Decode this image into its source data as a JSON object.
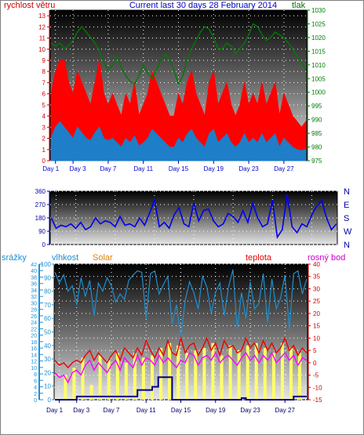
{
  "chart_data": [
    {
      "type": "line",
      "title": "Current last 30 days 28 February 2014",
      "left_axis_label": "rychlost větru",
      "right_axis_label": "tlak",
      "left_ticks": [
        0,
        1,
        2,
        3,
        4,
        5,
        6,
        7,
        8,
        9,
        10,
        11,
        12,
        13
      ],
      "right_ticks": [
        975,
        980,
        985,
        990,
        995,
        1000,
        1005,
        1010,
        1015,
        1020,
        1025,
        1030
      ],
      "ylim_left": [
        0,
        13.5
      ],
      "ylim_right": [
        975,
        1030
      ],
      "x_ticks": [
        "Day 1",
        "Day 3",
        "Day 7",
        "Day 11",
        "Day 15",
        "Day 19",
        "Day 23",
        "Day 27"
      ],
      "x_tick_days": [
        1,
        3,
        7,
        11,
        15,
        19,
        23,
        27
      ],
      "xlim": [
        0.4,
        29.6
      ],
      "grid": true,
      "colors": {
        "gust": "#ff0000",
        "wind": "#1e7ec8",
        "pressure": "#007a00",
        "title": "#0000cc"
      },
      "pressure": {
        "x": [
          0.5,
          1,
          1.5,
          2,
          2.5,
          3,
          3.5,
          4,
          4.5,
          5,
          5.5,
          6,
          6.5,
          7,
          7.5,
          8,
          8.5,
          9,
          9.5,
          10,
          10.5,
          11,
          11.5,
          12,
          12.5,
          13,
          13.5,
          14,
          14.5,
          15,
          15.5,
          16,
          16.5,
          17,
          17.5,
          18,
          18.5,
          19,
          19.5,
          20,
          20.5,
          21,
          21.5,
          22,
          22.5,
          23,
          23.5,
          24,
          24.5,
          25,
          25.5,
          26,
          26.5,
          27,
          27.5,
          28,
          28.5,
          29,
          29.5
        ],
        "y": [
          1018,
          1017,
          1018,
          1016,
          1017,
          1019,
          1022,
          1024,
          1022,
          1020,
          1018,
          1015,
          1011,
          1008,
          1010,
          1013,
          1009,
          1006,
          1004,
          1003,
          1006,
          1010,
          1007,
          1005,
          1008,
          1012,
          1014,
          1012,
          1008,
          1003,
          1006,
          1012,
          1016,
          1019,
          1022,
          1024,
          1023,
          1020,
          1016,
          1016,
          1018,
          1017,
          1014,
          1016,
          1018,
          1021,
          1025,
          1024,
          1021,
          1019,
          1020,
          1022,
          1021,
          1020,
          1018,
          1016,
          1013,
          1011,
          1008
        ]
      },
      "gust_peak": {
        "x": [
          0.5,
          1,
          1.5,
          2,
          2.5,
          3,
          3.5,
          4,
          4.5,
          5,
          5.5,
          6,
          6.5,
          7,
          7.5,
          8,
          8.5,
          9,
          9.5,
          10,
          10.5,
          11,
          11.5,
          12,
          12.5,
          13,
          13.5,
          14,
          14.5,
          15,
          15.5,
          16,
          16.5,
          17,
          17.5,
          18,
          18.5,
          19,
          19.5,
          20,
          20.5,
          21,
          21.5,
          22,
          22.5,
          23,
          23.5,
          24,
          24.5,
          25,
          25.5,
          26,
          26.5,
          27,
          27.5,
          28,
          28.5,
          29,
          29.5
        ],
        "y": [
          6,
          8,
          9,
          9,
          7,
          6,
          8,
          7,
          6,
          5,
          7,
          9,
          6,
          5,
          6,
          5,
          4,
          6,
          5,
          7,
          4,
          5,
          6,
          8,
          7,
          6,
          5,
          4,
          4,
          6,
          5,
          7,
          8,
          6,
          5,
          4,
          7,
          8,
          5,
          6,
          7,
          5,
          4,
          5,
          7,
          5,
          6,
          5,
          7,
          5,
          6,
          7,
          4,
          6,
          5,
          4,
          3.5,
          3,
          3.5
        ]
      },
      "wind_avg": {
        "x": [
          0.5,
          1,
          1.5,
          2,
          2.5,
          3,
          3.5,
          4,
          4.5,
          5,
          5.5,
          6,
          6.5,
          7,
          7.5,
          8,
          8.5,
          9,
          9.5,
          10,
          10.5,
          11,
          11.5,
          12,
          12.5,
          13,
          13.5,
          14,
          14.5,
          15,
          15.5,
          16,
          16.5,
          17,
          17.5,
          18,
          18.5,
          19,
          19.5,
          20,
          20.5,
          21,
          21.5,
          22,
          22.5,
          23,
          23.5,
          24,
          24.5,
          25,
          25.5,
          26,
          26.5,
          27,
          27.5,
          28,
          28.5,
          29,
          29.5
        ],
        "y": [
          2,
          3,
          3.5,
          3,
          2.5,
          2,
          3,
          2.5,
          2,
          1.8,
          2.5,
          3,
          2,
          1.8,
          2,
          1.6,
          1.2,
          2,
          1.6,
          2.2,
          1.3,
          1.6,
          2,
          2.8,
          2.4,
          2,
          1.6,
          1.2,
          1.2,
          2,
          1.6,
          2.4,
          2.8,
          2,
          1.6,
          1.2,
          2.4,
          2.8,
          1.6,
          2,
          2.4,
          1.6,
          1.2,
          1.6,
          2.4,
          1.6,
          2,
          1.6,
          2.4,
          1.6,
          2,
          2.4,
          1.2,
          2,
          1.6,
          1.2,
          1,
          0.9,
          1
        ]
      }
    },
    {
      "type": "line",
      "left_ticks": [
        0,
        90,
        180,
        270,
        360
      ],
      "ylim": [
        0,
        360
      ],
      "right_labels": [
        "N",
        "W",
        "S",
        "E",
        "N"
      ],
      "xlim": [
        0.4,
        29.6
      ],
      "colors": {
        "direction": "#0000ee"
      },
      "direction": {
        "x": [
          0.5,
          1,
          1.5,
          2,
          2.5,
          3,
          3.5,
          4,
          4.5,
          5,
          5.5,
          6,
          6.5,
          7,
          7.5,
          8,
          8.5,
          9,
          9.5,
          10,
          10.5,
          11,
          11.5,
          12,
          12.5,
          13,
          13.5,
          14,
          14.5,
          15,
          15.5,
          16,
          16.5,
          17,
          17.5,
          18,
          18.5,
          19,
          19.5,
          20,
          20.5,
          21,
          21.5,
          22,
          22.5,
          23,
          23.5,
          24,
          24.5,
          25,
          25.5,
          26,
          26.5,
          27,
          27.5,
          28,
          28.5,
          29,
          29.5
        ],
        "y": [
          180,
          110,
          130,
          120,
          140,
          110,
          150,
          100,
          120,
          180,
          140,
          160,
          150,
          120,
          190,
          130,
          140,
          120,
          180,
          130,
          210,
          300,
          120,
          150,
          110,
          200,
          250,
          140,
          120,
          280,
          160,
          230,
          240,
          160,
          120,
          140,
          210,
          190,
          150,
          230,
          150,
          280,
          180,
          120,
          140,
          300,
          50,
          100,
          340,
          120,
          80,
          140,
          120,
          200,
          260,
          300,
          180,
          100,
          140
        ]
      }
    },
    {
      "type": "line",
      "series_labels": {
        "precip": "srážky",
        "humidity": "vlhkost",
        "solar": "Solar",
        "temp": "teplota",
        "dew": "rosný bod"
      },
      "left_ticks_precip": [
        0,
        2,
        4,
        6,
        8,
        10,
        12,
        14,
        16,
        18,
        20,
        22,
        24,
        26,
        28,
        30,
        32,
        34,
        36,
        38,
        40,
        42
      ],
      "ylim_precip": [
        0,
        42
      ],
      "left_ticks_humidity": [
        0,
        10,
        20,
        30,
        40,
        50,
        60,
        70,
        80,
        90,
        100
      ],
      "ylim_humidity": [
        0,
        100
      ],
      "right_ticks_temp": [
        -15,
        -10,
        -5,
        0,
        5,
        10,
        15,
        20,
        25,
        30,
        35,
        40
      ],
      "ylim_temp": [
        -15,
        40
      ],
      "x_ticks": [
        "Day 1",
        "Day 3",
        "Day 7",
        "Day 11",
        "Day 15",
        "Day 19",
        "Day 23",
        "Day 27"
      ],
      "x_tick_days": [
        1,
        3,
        7,
        11,
        15,
        19,
        23,
        27
      ],
      "xlim": [
        0.4,
        29.6
      ],
      "colors": {
        "precip": "#1e8fd0",
        "humidity": "#1e8fd0",
        "solar": "#ffff66",
        "solar_label": "#e08000",
        "temp": "#ee0000",
        "temp_label": "#ee0000",
        "dew": "#ff00ff",
        "dew_label": "#cc00cc",
        "rain_sum": "#000080"
      },
      "humidity": {
        "x": [
          0.5,
          1,
          1.5,
          2,
          2.5,
          3,
          3.5,
          4,
          4.5,
          5,
          5.5,
          6,
          6.5,
          7,
          7.5,
          8,
          8.5,
          9,
          9.5,
          10,
          10.5,
          11,
          11.5,
          12,
          12.5,
          13,
          13.5,
          14,
          14.5,
          15,
          15.5,
          16,
          16.5,
          17,
          17.5,
          18,
          18.5,
          19,
          19.5,
          20,
          20.5,
          21,
          21.5,
          22,
          22.5,
          23,
          23.5,
          24,
          24.5,
          25,
          25.5,
          26,
          26.5,
          27,
          27.5,
          28,
          28.5,
          29,
          29.5
        ],
        "y": [
          94,
          86,
          92,
          80,
          84,
          70,
          90,
          76,
          88,
          62,
          86,
          80,
          90,
          84,
          72,
          78,
          74,
          88,
          92,
          95,
          94,
          60,
          93,
          95,
          78,
          85,
          91,
          56,
          70,
          46,
          73,
          87,
          79,
          67,
          91,
          83,
          64,
          79,
          86,
          62,
          83,
          96,
          52,
          79,
          60,
          87,
          67,
          71,
          93,
          57,
          89,
          67,
          75,
          92,
          52,
          93,
          95,
          78,
          89
        ]
      },
      "temperature": {
        "x": [
          0.5,
          1,
          1.5,
          2,
          2.5,
          3,
          3.5,
          4,
          4.5,
          5,
          5.5,
          6,
          6.5,
          7,
          7.5,
          8,
          8.5,
          9,
          9.5,
          10,
          10.5,
          11,
          11.5,
          12,
          12.5,
          13,
          13.5,
          14,
          14.5,
          15,
          15.5,
          16,
          16.5,
          17,
          17.5,
          18,
          18.5,
          19,
          19.5,
          20,
          20.5,
          21,
          21.5,
          22,
          22.5,
          23,
          23.5,
          24,
          24.5,
          25,
          25.5,
          26,
          26.5,
          27,
          27.5,
          28,
          28.5,
          29,
          29.5
        ],
        "y": [
          1,
          -1,
          0,
          -2,
          0,
          1,
          0,
          3,
          5,
          1,
          4,
          2,
          0,
          3,
          5,
          1,
          6,
          4,
          2,
          6,
          3,
          9,
          5,
          2,
          6,
          3,
          9,
          4,
          3,
          10,
          4,
          7,
          8,
          3,
          6,
          10,
          5,
          8,
          3,
          9,
          6,
          7,
          4,
          5,
          10,
          6,
          8,
          4,
          9,
          5,
          8,
          4,
          6,
          10,
          5,
          7,
          3,
          6,
          4
        ]
      },
      "dew_point": {
        "x": [
          0.5,
          1,
          1.5,
          2,
          2.5,
          3,
          3.5,
          4,
          4.5,
          5,
          5.5,
          6,
          6.5,
          7,
          7.5,
          8,
          8.5,
          9,
          9.5,
          10,
          10.5,
          11,
          11.5,
          12,
          12.5,
          13,
          13.5,
          14,
          14.5,
          15,
          15.5,
          16,
          16.5,
          17,
          17.5,
          18,
          18.5,
          19,
          19.5,
          20,
          20.5,
          21,
          21.5,
          22,
          22.5,
          23,
          23.5,
          24,
          24.5,
          25,
          25.5,
          26,
          26.5,
          27,
          27.5,
          28,
          28.5,
          29,
          29.5
        ],
        "y": [
          -4,
          -6,
          -5,
          -8,
          -4,
          -3,
          -5,
          -1,
          1,
          -3,
          0,
          -2,
          -4,
          -1,
          1,
          -3,
          2,
          0,
          -2,
          3,
          -1,
          2,
          1,
          -1,
          3,
          0,
          2,
          0,
          -2,
          1,
          0,
          4,
          3,
          -1,
          2,
          3,
          1,
          4,
          0,
          2,
          3,
          1,
          -1,
          2,
          4,
          1,
          3,
          0,
          3,
          1,
          4,
          0,
          2,
          4,
          1,
          3,
          -1,
          2,
          1
        ]
      },
      "solar": {
        "x": [
          1.7,
          2.7,
          3.7,
          4.7,
          5.7,
          6.7,
          7.7,
          8.7,
          9.7,
          10.7,
          11.7,
          12.7,
          13.7,
          14.7,
          15.7,
          16.7,
          17.7,
          18.7,
          19.7,
          20.7,
          21.7,
          22.7,
          23.7,
          24.7,
          25.7,
          26.7,
          27.7,
          28.7
        ],
        "y": [
          -5,
          -2,
          2,
          -9,
          3,
          1,
          4,
          0,
          4,
          2,
          3,
          6,
          8,
          7,
          4,
          5,
          6,
          8,
          3,
          7,
          5,
          7,
          8,
          6,
          4,
          8,
          6,
          4
        ]
      },
      "rain_sum": {
        "x": [
          0.5,
          2.8,
          3.0,
          3.2,
          9.9,
          10.0,
          11.5,
          11.7,
          12.0,
          12.4,
          12.6,
          13.5,
          14.0,
          18.0,
          21.5,
          22.0,
          22.5,
          27.5,
          28.0,
          29.5
        ],
        "y": [
          0,
          0,
          1,
          1,
          1,
          3,
          3,
          4,
          4,
          7,
          7,
          7,
          0,
          0,
          0,
          0.5,
          0,
          0,
          1,
          1
        ]
      }
    }
  ]
}
